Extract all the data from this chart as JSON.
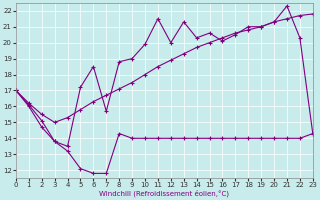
{
  "xlabel": "Windchill (Refroidissement éolien,°C)",
  "bg_color": "#c8ecec",
  "line_color": "#800080",
  "grid_color": "#ffffff",
  "xmin": 0,
  "xmax": 23,
  "ymin": 11.5,
  "ymax": 22.5,
  "yticks": [
    12,
    13,
    14,
    15,
    16,
    17,
    18,
    19,
    20,
    21,
    22
  ],
  "xticks": [
    0,
    1,
    2,
    3,
    4,
    5,
    6,
    7,
    8,
    9,
    10,
    11,
    12,
    13,
    14,
    15,
    16,
    17,
    18,
    19,
    20,
    21,
    22,
    23
  ],
  "series": [
    {
      "x": [
        0,
        1,
        2,
        3,
        4,
        5,
        6,
        7,
        8,
        9,
        10,
        11,
        12,
        13,
        14,
        15,
        16,
        17,
        18,
        19,
        20,
        21,
        22,
        23
      ],
      "y": [
        17.0,
        16.0,
        14.7,
        13.8,
        13.2,
        12.1,
        11.8,
        11.8,
        14.3,
        14.0,
        14.0,
        14.0,
        14.0,
        14.0,
        14.0,
        14.0,
        14.0,
        14.0,
        14.0,
        14.0,
        14.0,
        14.0,
        14.0,
        14.3
      ]
    },
    {
      "x": [
        0,
        1,
        2,
        3,
        4,
        5,
        6,
        7,
        8,
        9,
        10,
        11,
        12,
        13,
        14,
        15,
        16,
        17,
        18,
        19,
        20,
        21,
        22,
        23
      ],
      "y": [
        17.0,
        16.1,
        15.1,
        13.8,
        13.5,
        17.2,
        18.5,
        15.7,
        18.8,
        19.0,
        19.9,
        21.5,
        20.0,
        21.3,
        20.3,
        20.6,
        20.1,
        20.5,
        21.0,
        21.0,
        21.3,
        22.3,
        20.3,
        14.3
      ]
    },
    {
      "x": [
        0,
        1,
        2,
        3,
        4,
        5,
        6,
        7,
        8,
        9,
        10,
        11,
        12,
        13,
        14,
        15,
        16,
        17,
        18,
        19,
        20,
        21,
        22,
        23
      ],
      "y": [
        17.0,
        16.2,
        15.5,
        15.0,
        15.3,
        15.8,
        16.3,
        16.7,
        17.1,
        17.5,
        18.0,
        18.5,
        18.9,
        19.3,
        19.7,
        20.0,
        20.3,
        20.6,
        20.8,
        21.0,
        21.3,
        21.5,
        21.7,
        21.8
      ]
    }
  ]
}
